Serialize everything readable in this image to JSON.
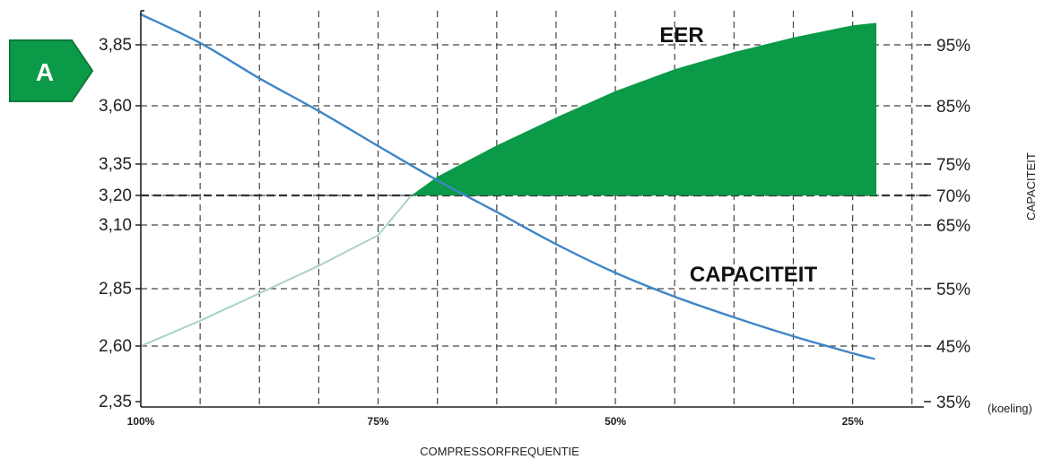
{
  "colors": {
    "eer_fill": "#0a9a48",
    "capacity_line": "#3f86c6",
    "eer_line_faded": "#a9d3c2",
    "grid": "#444444",
    "badge_fill": "#0a9a48",
    "badge_stroke": "#0a7a38"
  },
  "badge": {
    "letter": "A",
    "icon": "energy-label-arrow-icon"
  },
  "chart_data": {
    "type": "line",
    "xlabel": "COMPRESSORFREQUENTIE",
    "ylabel_right": "CAPACITEIT",
    "x_axis": {
      "ticks": [
        100,
        75,
        50,
        25
      ],
      "tick_labels": [
        "100%",
        "75%",
        "50%",
        "25%"
      ],
      "range": [
        100,
        17.5
      ],
      "grid_step": 6.25
    },
    "y_left": {
      "ticks": [
        2.35,
        2.6,
        2.85,
        3.1,
        3.2,
        3.35,
        3.6,
        3.85
      ],
      "tick_labels": [
        "2,35",
        "2,60",
        "2,85",
        "3,10",
        "3,20",
        "3,35",
        "3,60",
        "3,85"
      ],
      "range": [
        2.35,
        3.9
      ]
    },
    "y_right": {
      "ticks": [
        35,
        45,
        55,
        65,
        70,
        75,
        85,
        95
      ],
      "tick_labels": [
        "35%",
        "45%",
        "55%",
        "65%",
        "70%",
        "75%",
        "85%",
        "95%"
      ],
      "suffix_note": "(koeling)"
    },
    "grid": true,
    "threshold": {
      "eer": 3.2,
      "capacity_pct": 70
    },
    "series": [
      {
        "name": "EER",
        "x": [
          100,
          93.75,
          87.5,
          81.25,
          75,
          71.5,
          68.75,
          62.5,
          56.25,
          50,
          43.75,
          37.5,
          31.25,
          25,
          22.5
        ],
        "y": [
          2.6,
          2.71,
          2.83,
          2.94,
          3.06,
          3.2,
          3.29,
          3.43,
          3.55,
          3.66,
          3.75,
          3.82,
          3.88,
          3.93,
          3.94
        ]
      },
      {
        "name": "CAPACITEIT",
        "x": [
          100,
          93.75,
          87.5,
          81.25,
          75,
          68.75,
          62.5,
          56.25,
          50,
          43.75,
          37.5,
          31.25,
          25,
          22.75
        ],
        "y": [
          100,
          95.3,
          89.5,
          84.1,
          78.1,
          72.4,
          67.2,
          62.0,
          57.5,
          53.6,
          50.0,
          46.7,
          43.7,
          42.7
        ]
      }
    ]
  }
}
